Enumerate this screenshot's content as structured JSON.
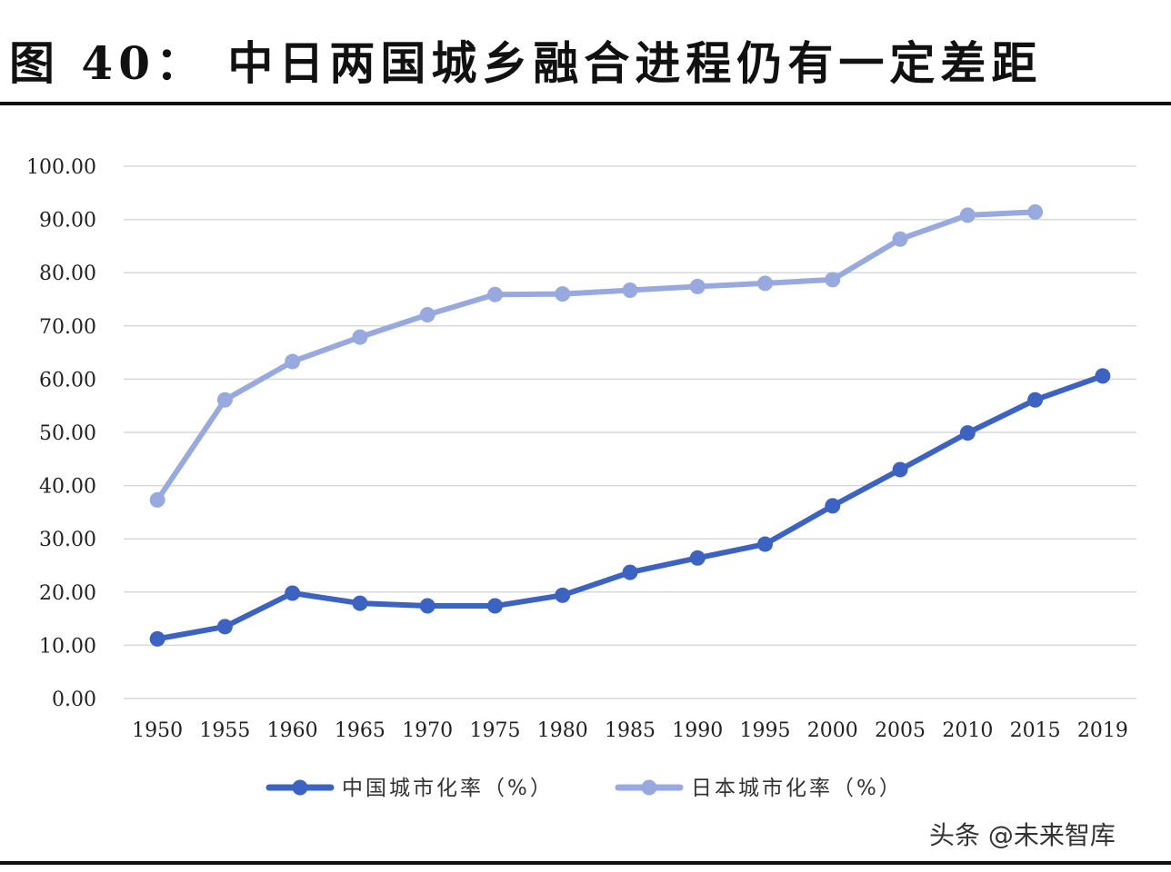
{
  "title": "图 40： 中日两国城乡融合进程仍有一定差距",
  "watermark": "头条 @未来智库",
  "colors": {
    "china": "#3d63c2",
    "japan": "#97a9df",
    "grid": "#d9d9d9"
  },
  "chart_data": {
    "type": "line",
    "title": "",
    "xlabel": "",
    "ylabel": "",
    "categories": [
      "1950",
      "1955",
      "1960",
      "1965",
      "1970",
      "1975",
      "1980",
      "1985",
      "1990",
      "1995",
      "2000",
      "2005",
      "2010",
      "2015",
      "2019"
    ],
    "ylim": [
      0,
      100
    ],
    "yticks": [
      "0.00",
      "10.00",
      "20.00",
      "30.00",
      "40.00",
      "50.00",
      "60.00",
      "70.00",
      "80.00",
      "90.00",
      "100.00"
    ],
    "grid": true,
    "legend": "bottom",
    "series": [
      {
        "name": "中国城市化率（%）",
        "color": "#3d63c2",
        "values": [
          11.2,
          13.5,
          19.8,
          17.9,
          17.4,
          17.4,
          19.4,
          23.7,
          26.4,
          29.0,
          36.2,
          43.0,
          49.9,
          56.1,
          60.6
        ]
      },
      {
        "name": "日本城市化率（%）",
        "color": "#97a9df",
        "values": [
          37.3,
          56.1,
          63.3,
          67.9,
          72.1,
          75.9,
          76.0,
          76.7,
          77.4,
          78.0,
          78.7,
          86.3,
          90.8,
          91.4,
          null
        ]
      }
    ]
  }
}
